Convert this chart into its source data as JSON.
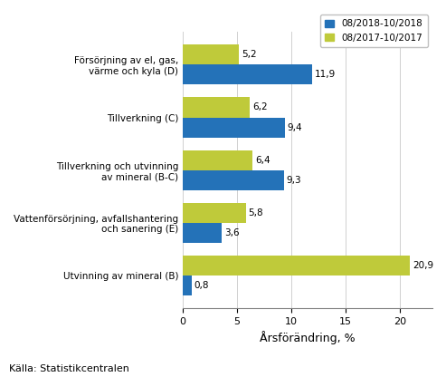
{
  "categories": [
    "Försörjning av el, gas,\nvärme och kyla (D)",
    "Tillverkning (C)",
    "Tillverkning och utvinning\nav mineral (B-C)",
    "Vattenförsörjning, avfallshantering\noch sanering (E)",
    "Utvinning av mineral (B)"
  ],
  "values_blue": [
    11.9,
    9.4,
    9.3,
    3.6,
    0.8
  ],
  "values_yellow": [
    5.2,
    6.2,
    6.4,
    5.8,
    20.9
  ],
  "labels_blue": [
    "11,9",
    "9,4",
    "9,3",
    "3,6",
    "0,8"
  ],
  "labels_yellow": [
    "5,2",
    "6,2",
    "6,4",
    "5,8",
    "20,9"
  ],
  "color_blue": "#2472B8",
  "color_yellow": "#BFCA3A",
  "legend_blue": "08/2018-10/2018",
  "legend_yellow": "08/2017-10/2017",
  "xlabel": "Årsförändring, %",
  "footnote": "Källa: Statistikcentralen",
  "xlim": [
    0,
    23
  ],
  "xticks": [
    0,
    5,
    10,
    15,
    20
  ],
  "bar_height": 0.38,
  "label_fontsize": 7.5,
  "tick_fontsize": 8,
  "legend_fontsize": 7.5,
  "xlabel_fontsize": 9,
  "footnote_fontsize": 8,
  "yticklabel_fontsize": 7.5
}
